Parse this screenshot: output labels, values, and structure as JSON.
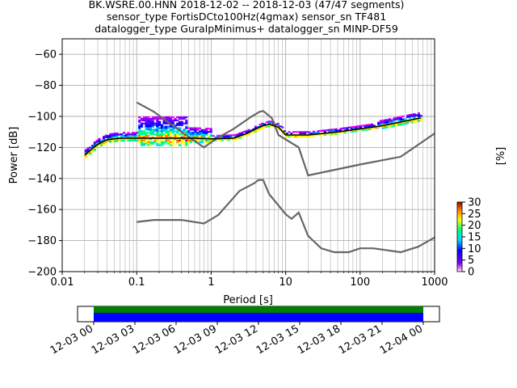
{
  "chart_data": {
    "type": "heatmap",
    "title_lines": [
      "BK.WSRE.00.HNN   2018-12-02 -- 2018-12-03  (47/47 segments)",
      "sensor_type FortisDCto100Hz(4gmax) sensor_sn TF481",
      "datalogger_type GuralpMinimus+ datalogger_sn MINP-DF59"
    ],
    "xlabel": "Period [s]",
    "ylabel": "Power [dB]",
    "x_scale": "log",
    "xlim": [
      0.01,
      1000
    ],
    "ylim": [
      -200,
      -50
    ],
    "x_ticks": [
      {
        "value": 0.01,
        "label": "0.01"
      },
      {
        "value": 0.1,
        "label": "0.1"
      },
      {
        "value": 1,
        "label": "1"
      },
      {
        "value": 10,
        "label": "10"
      },
      {
        "value": 100,
        "label": "100"
      },
      {
        "value": 1000,
        "label": "1000"
      }
    ],
    "y_ticks": [
      {
        "value": -60,
        "label": "−60"
      },
      {
        "value": -80,
        "label": "−80"
      },
      {
        "value": -100,
        "label": "−100"
      },
      {
        "value": -120,
        "label": "−120"
      },
      {
        "value": -140,
        "label": "−140"
      },
      {
        "value": -160,
        "label": "−160"
      },
      {
        "value": -180,
        "label": "−180"
      },
      {
        "value": -200,
        "label": "−200"
      }
    ],
    "grid": true,
    "colorbar": {
      "label": "[%]",
      "range": [
        0,
        30
      ],
      "ticks": [
        {
          "value": 0,
          "label": "0"
        },
        {
          "value": 5,
          "label": "5"
        },
        {
          "value": 10,
          "label": "10"
        },
        {
          "value": 15,
          "label": "15"
        },
        {
          "value": 20,
          "label": "20"
        },
        {
          "value": 25,
          "label": "25"
        },
        {
          "value": 30,
          "label": "30"
        }
      ]
    },
    "noise_model_high": [
      [
        0.1,
        -91
      ],
      [
        0.17,
        -97
      ],
      [
        0.4,
        -110
      ],
      [
        0.8,
        -120
      ],
      [
        1.2,
        -114
      ],
      [
        2,
        -108
      ],
      [
        3.5,
        -100
      ],
      [
        4.5,
        -97
      ],
      [
        5,
        -96.5
      ],
      [
        6.5,
        -101
      ],
      [
        8,
        -112
      ],
      [
        15,
        -120
      ],
      [
        20,
        -138
      ],
      [
        100,
        -131
      ],
      [
        350,
        -126
      ],
      [
        1000,
        -111
      ]
    ],
    "noise_model_low": [
      [
        0.1,
        -168
      ],
      [
        0.17,
        -166.7
      ],
      [
        0.4,
        -166.7
      ],
      [
        0.8,
        -169
      ],
      [
        1.25,
        -163.5
      ],
      [
        2.4,
        -148
      ],
      [
        3.8,
        -143
      ],
      [
        4.3,
        -141
      ],
      [
        5,
        -141
      ],
      [
        6,
        -150
      ],
      [
        10,
        -163
      ],
      [
        12,
        -166
      ],
      [
        15,
        -162
      ],
      [
        20,
        -177
      ],
      [
        30,
        -185
      ],
      [
        45,
        -187.5
      ],
      [
        70,
        -187.5
      ],
      [
        100,
        -185
      ],
      [
        150,
        -185
      ],
      [
        350,
        -187.5
      ],
      [
        600,
        -184
      ],
      [
        1000,
        -178
      ]
    ],
    "median_psd": [
      [
        0.02,
        -125
      ],
      [
        0.025,
        -121
      ],
      [
        0.03,
        -118
      ],
      [
        0.04,
        -115
      ],
      [
        0.06,
        -114
      ],
      [
        0.1,
        -114
      ],
      [
        0.2,
        -114
      ],
      [
        0.4,
        -114
      ],
      [
        0.6,
        -114
      ],
      [
        1,
        -114.5
      ],
      [
        2,
        -114
      ],
      [
        3,
        -111
      ],
      [
        4,
        -108
      ],
      [
        5,
        -106
      ],
      [
        6,
        -105
      ],
      [
        8,
        -107
      ],
      [
        10,
        -112
      ],
      [
        20,
        -112
      ],
      [
        50,
        -110
      ],
      [
        100,
        -108
      ],
      [
        200,
        -106
      ],
      [
        400,
        -103
      ],
      [
        650,
        -101
      ]
    ],
    "time_axis": {
      "tick_labels": [
        "12-03 00",
        "12-03 03",
        "12-03 06",
        "12-03 09",
        "12-03 12",
        "12-03 15",
        "12-03 18",
        "12-03 21",
        "12-04 00"
      ],
      "coverage_colors": [
        "#008000",
        "#0000ff"
      ]
    }
  }
}
